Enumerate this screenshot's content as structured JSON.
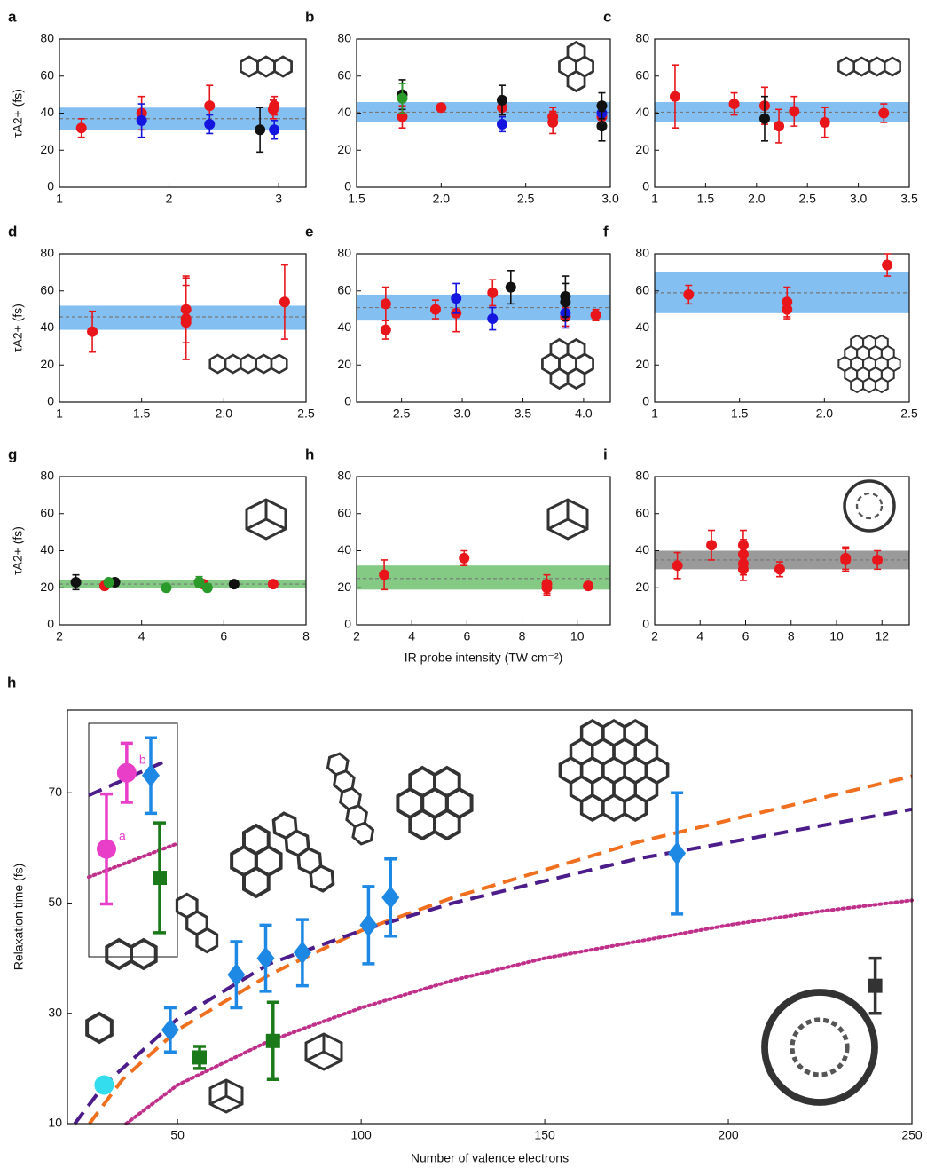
{
  "chart_data": [
    {
      "type": "scatter",
      "panel_label": "a",
      "y_label": "τA2+ (fs)",
      "xlim": [
        1,
        3.25
      ],
      "xticks": [
        1,
        2,
        3
      ],
      "ylim": [
        0,
        80
      ],
      "yticks": [
        0,
        20,
        40,
        60,
        80
      ],
      "band": {
        "lower": 31,
        "upper": 43,
        "mean": 37,
        "color": "#6fb4f0"
      },
      "series": [
        {
          "color": "#e8161b",
          "x": [
            1.2,
            1.75,
            2.37,
            2.95,
            2.96
          ],
          "values": [
            32,
            40,
            44,
            42,
            44
          ],
          "errors": [
            5,
            9,
            11,
            5,
            5
          ]
        },
        {
          "color": "#1515e0",
          "x": [
            1.75,
            2.37,
            2.96
          ],
          "values": [
            36,
            34,
            31
          ],
          "errors": [
            9,
            5,
            5
          ]
        },
        {
          "color": "#111111",
          "x": [
            2.83
          ],
          "values": [
            31
          ],
          "errors": [
            12
          ]
        }
      ]
    },
    {
      "type": "scatter",
      "panel_label": "b",
      "xlim": [
        1.5,
        3.0
      ],
      "xticks": [
        1.5,
        {
          "value": 2,
          "label": "2.0"
        },
        2.5,
        {
          "value": 3,
          "label": "3.0"
        }
      ],
      "ylim": [
        0,
        80
      ],
      "yticks": [
        0,
        20,
        40,
        60,
        80
      ],
      "band": {
        "lower": 35,
        "upper": 46,
        "mean": 40.5,
        "color": "#6fb4f0"
      },
      "series": [
        {
          "color": "#e8161b",
          "x": [
            1.77,
            2.0,
            2.36,
            2.66,
            2.66,
            2.95
          ],
          "values": [
            38,
            43,
            43,
            38,
            35,
            38
          ],
          "errors": [
            6,
            2,
            4,
            5,
            6,
            5
          ]
        },
        {
          "color": "#1515e0",
          "x": [
            2.36,
            2.95
          ],
          "values": [
            34,
            40
          ],
          "errors": [
            4,
            5
          ]
        },
        {
          "color": "#111111",
          "x": [
            1.77,
            2.36,
            2.95,
            2.95
          ],
          "values": [
            50,
            47,
            44,
            33
          ],
          "errors": [
            8,
            8,
            7,
            8
          ]
        },
        {
          "color": "#2a9a2a",
          "x": [
            1.77
          ],
          "values": [
            48
          ],
          "errors": [
            8
          ]
        }
      ]
    },
    {
      "type": "scatter",
      "panel_label": "c",
      "xlim": [
        1,
        3.5
      ],
      "xticks": [
        1,
        1.5,
        {
          "value": 2,
          "label": "2.0"
        },
        2.5,
        {
          "value": 3,
          "label": "3.0"
        },
        3.5
      ],
      "ylim": [
        0,
        80
      ],
      "yticks": [
        0,
        20,
        40,
        60,
        80
      ],
      "band": {
        "lower": 35,
        "upper": 46,
        "mean": 40.5,
        "color": "#6fb4f0"
      },
      "series": [
        {
          "color": "#e8161b",
          "x": [
            1.2,
            1.78,
            2.08,
            2.22,
            2.37,
            2.67,
            3.25
          ],
          "values": [
            49,
            45,
            44,
            33,
            41,
            35,
            40
          ],
          "errors": [
            17,
            6,
            10,
            9,
            8,
            8,
            5
          ]
        },
        {
          "color": "#111111",
          "x": [
            2.08
          ],
          "values": [
            37
          ],
          "errors": [
            12
          ]
        }
      ]
    },
    {
      "type": "scatter",
      "panel_label": "d",
      "y_label": "τA2+ (fs)",
      "xlim": [
        1,
        2.5
      ],
      "xticks": [
        1,
        1.5,
        {
          "value": 2,
          "label": "2.0"
        },
        2.5
      ],
      "ylim": [
        0,
        80
      ],
      "yticks": [
        0,
        20,
        40,
        60,
        80
      ],
      "band": {
        "lower": 39,
        "upper": 52,
        "mean": 46,
        "color": "#6fb4f0"
      },
      "series": [
        {
          "color": "#e8161b",
          "x": [
            1.2,
            1.77,
            1.77,
            1.77,
            2.37
          ],
          "values": [
            38,
            50,
            45,
            43,
            54
          ],
          "errors": [
            11,
            18,
            22,
            20,
            20
          ]
        }
      ]
    },
    {
      "type": "scatter",
      "panel_label": "e",
      "xlim": [
        2.13,
        4.22
      ],
      "xticks": [
        2.5,
        {
          "value": 3,
          "label": "3.0"
        },
        3.5,
        {
          "value": 4,
          "label": "4.0"
        }
      ],
      "ylim": [
        0,
        80
      ],
      "yticks": [
        0,
        20,
        40,
        60,
        80
      ],
      "band": {
        "lower": 44,
        "upper": 58,
        "mean": 51,
        "color": "#6fb4f0"
      },
      "series": [
        {
          "color": "#e8161b",
          "x": [
            2.37,
            2.37,
            2.78,
            2.95,
            3.25,
            3.85,
            4.1
          ],
          "values": [
            53,
            39,
            50,
            48,
            59,
            46,
            47
          ],
          "errors": [
            9,
            5,
            5,
            10,
            7,
            5,
            3
          ]
        },
        {
          "color": "#1515e0",
          "x": [
            2.95,
            3.25,
            3.85
          ],
          "values": [
            56,
            45,
            48
          ],
          "errors": [
            8,
            6,
            8
          ]
        },
        {
          "color": "#111111",
          "x": [
            3.4,
            3.85,
            3.85
          ],
          "values": [
            62,
            57,
            54
          ],
          "errors": [
            9,
            11,
            10
          ]
        }
      ]
    },
    {
      "type": "scatter",
      "panel_label": "f",
      "xlim": [
        1,
        2.5
      ],
      "xticks": [
        1,
        1.5,
        {
          "value": 2,
          "label": "2.0"
        },
        2.5
      ],
      "ylim": [
        0,
        80
      ],
      "yticks": [
        0,
        20,
        40,
        60,
        80
      ],
      "band": {
        "lower": 48,
        "upper": 70,
        "mean": 59,
        "color": "#6fb4f0"
      },
      "series": [
        {
          "color": "#e8161b",
          "x": [
            1.2,
            1.78,
            1.78,
            2.37
          ],
          "values": [
            58,
            54,
            50,
            74
          ],
          "errors": [
            5,
            8,
            5,
            6
          ]
        }
      ]
    },
    {
      "type": "scatter",
      "panel_label": "g",
      "y_label": "τA2+ (fs)",
      "xlim": [
        2,
        8
      ],
      "xticks": [
        2,
        4,
        6,
        8
      ],
      "ylim": [
        0,
        80
      ],
      "yticks": [
        0,
        20,
        40,
        60,
        80
      ],
      "band": {
        "lower": 20,
        "upper": 24,
        "mean": 22,
        "color": "#6fbf6f"
      },
      "series": [
        {
          "color": "#111111",
          "x": [
            2.4,
            3.35,
            5.4,
            6.25
          ],
          "values": [
            23,
            23,
            23,
            22
          ],
          "errors": [
            4,
            2,
            2,
            2
          ]
        },
        {
          "color": "#e8161b",
          "x": [
            3.1,
            5.5,
            7.2
          ],
          "values": [
            21,
            22,
            22
          ],
          "errors": [
            2,
            2,
            1
          ]
        },
        {
          "color": "#2a9a2a",
          "x": [
            3.2,
            4.6,
            5.6,
            5.4
          ],
          "values": [
            23,
            20,
            20,
            23
          ],
          "errors": [
            2,
            2,
            2,
            3
          ]
        }
      ]
    },
    {
      "type": "scatter",
      "panel_label": "h",
      "x_label": "IR probe intensity (TW cm⁻²)",
      "xlim": [
        2,
        11.2
      ],
      "xticks": [
        2,
        4,
        6,
        8,
        10
      ],
      "ylim": [
        0,
        80
      ],
      "yticks": [
        0,
        20,
        40,
        60,
        80
      ],
      "band": {
        "lower": 19,
        "upper": 32,
        "mean": 25,
        "color": "#6fbf6f"
      },
      "series": [
        {
          "color": "#e8161b",
          "x": [
            3,
            5.9,
            8.9,
            8.9,
            10.4
          ],
          "values": [
            27,
            36,
            22,
            20,
            21
          ],
          "errors": [
            8,
            4,
            5,
            4,
            2
          ]
        }
      ]
    },
    {
      "type": "scatter",
      "panel_label": "i",
      "xlim": [
        2,
        13.2
      ],
      "xticks": [
        2,
        4,
        6,
        8,
        10,
        12
      ],
      "ylim": [
        0,
        80
      ],
      "yticks": [
        0,
        20,
        40,
        60,
        80
      ],
      "band": {
        "lower": 30,
        "upper": 40,
        "mean": 35,
        "color": "#888888"
      },
      "series": [
        {
          "color": "#e8161b",
          "x": [
            3,
            4.5,
            5.9,
            5.9,
            5.9,
            5.9,
            7.5,
            10.4,
            10.4,
            11.8
          ],
          "values": [
            32,
            43,
            43,
            38,
            33,
            30,
            30,
            35,
            36,
            35
          ],
          "errors": [
            7,
            8,
            8,
            8,
            6,
            6,
            4,
            6,
            6,
            5
          ]
        }
      ]
    },
    {
      "type": "scatter",
      "panel_label": "h",
      "y_label": "Relaxation time (fs)",
      "x_label": "Number of valence electrons",
      "xlim": [
        20,
        250
      ],
      "xticks": [
        50,
        100,
        150,
        200,
        250
      ],
      "ylim": [
        10,
        85
      ],
      "yticks": [
        10,
        30,
        50,
        70
      ],
      "curves": [
        {
          "color": "#f07020",
          "style": "dashed",
          "x": [
            26,
            35,
            50,
            75,
            100,
            125,
            150,
            175,
            200,
            225,
            250
          ],
          "values": [
            10,
            18,
            27,
            37,
            45,
            51,
            56,
            61,
            65,
            69,
            73
          ]
        },
        {
          "color": "#4b1c8a",
          "style": "dashed",
          "x": [
            22,
            30,
            50,
            75,
            100,
            125,
            150,
            175,
            200,
            225,
            250
          ],
          "values": [
            10,
            17,
            29,
            39,
            45,
            50,
            54,
            58,
            61,
            64,
            67
          ]
        },
        {
          "color": "#c0308a",
          "style": "dotted",
          "x": [
            36,
            50,
            75,
            100,
            125,
            150,
            175,
            200,
            225,
            250
          ],
          "values": [
            10,
            17,
            25,
            31,
            36,
            40,
            43,
            46,
            48.5,
            50.5
          ]
        }
      ],
      "series": [
        {
          "color": "#1e88e5",
          "marker": "diamond",
          "x": [
            48,
            66,
            74,
            84,
            102,
            108,
            186
          ],
          "values": [
            27,
            37,
            40,
            41,
            46,
            51,
            59
          ],
          "errors": [
            4,
            6,
            6,
            6,
            7,
            7,
            11
          ]
        },
        {
          "color": "#1a7a1a",
          "marker": "square",
          "x": [
            56,
            76
          ],
          "values": [
            22,
            25
          ],
          "errors": [
            2,
            7
          ]
        },
        {
          "color": "#333333",
          "marker": "square",
          "x": [
            240
          ],
          "values": [
            35
          ],
          "errors": [
            5
          ]
        },
        {
          "color": "#33ddee",
          "marker": "circle",
          "x": [
            30
          ],
          "values": [
            17
          ]
        }
      ],
      "inset": {
        "xlim": [
          36,
          50
        ],
        "ylim": [
          44,
          78
        ],
        "curves": [
          {
            "color": "#4b1c8a",
            "style": "dashed",
            "x": [
              36,
              47.9
            ],
            "values": [
              67.5,
              72.4
            ]
          },
          {
            "color": "#c0308a",
            "style": "dotted",
            "x": [
              36,
              50
            ],
            "values": [
              55.6,
              60.5
            ]
          }
        ],
        "series": [
          {
            "color": "#e83ec8",
            "marker": "circle",
            "x": [
              38.8,
              42
            ],
            "values": [
              59.7,
              70.8
            ],
            "errors": [
              8,
              4.3
            ],
            "point_labels": [
              "a",
              "b"
            ]
          },
          {
            "color": "#1e88e5",
            "marker": "diamond",
            "x": [
              45.8
            ],
            "values": [
              70.4
            ],
            "errors": [
              5.5
            ]
          },
          {
            "color": "#1a7a1a",
            "marker": "square",
            "x": [
              47.2
            ],
            "values": [
              55.5
            ],
            "errors": [
              8
            ]
          }
        ]
      }
    }
  ]
}
